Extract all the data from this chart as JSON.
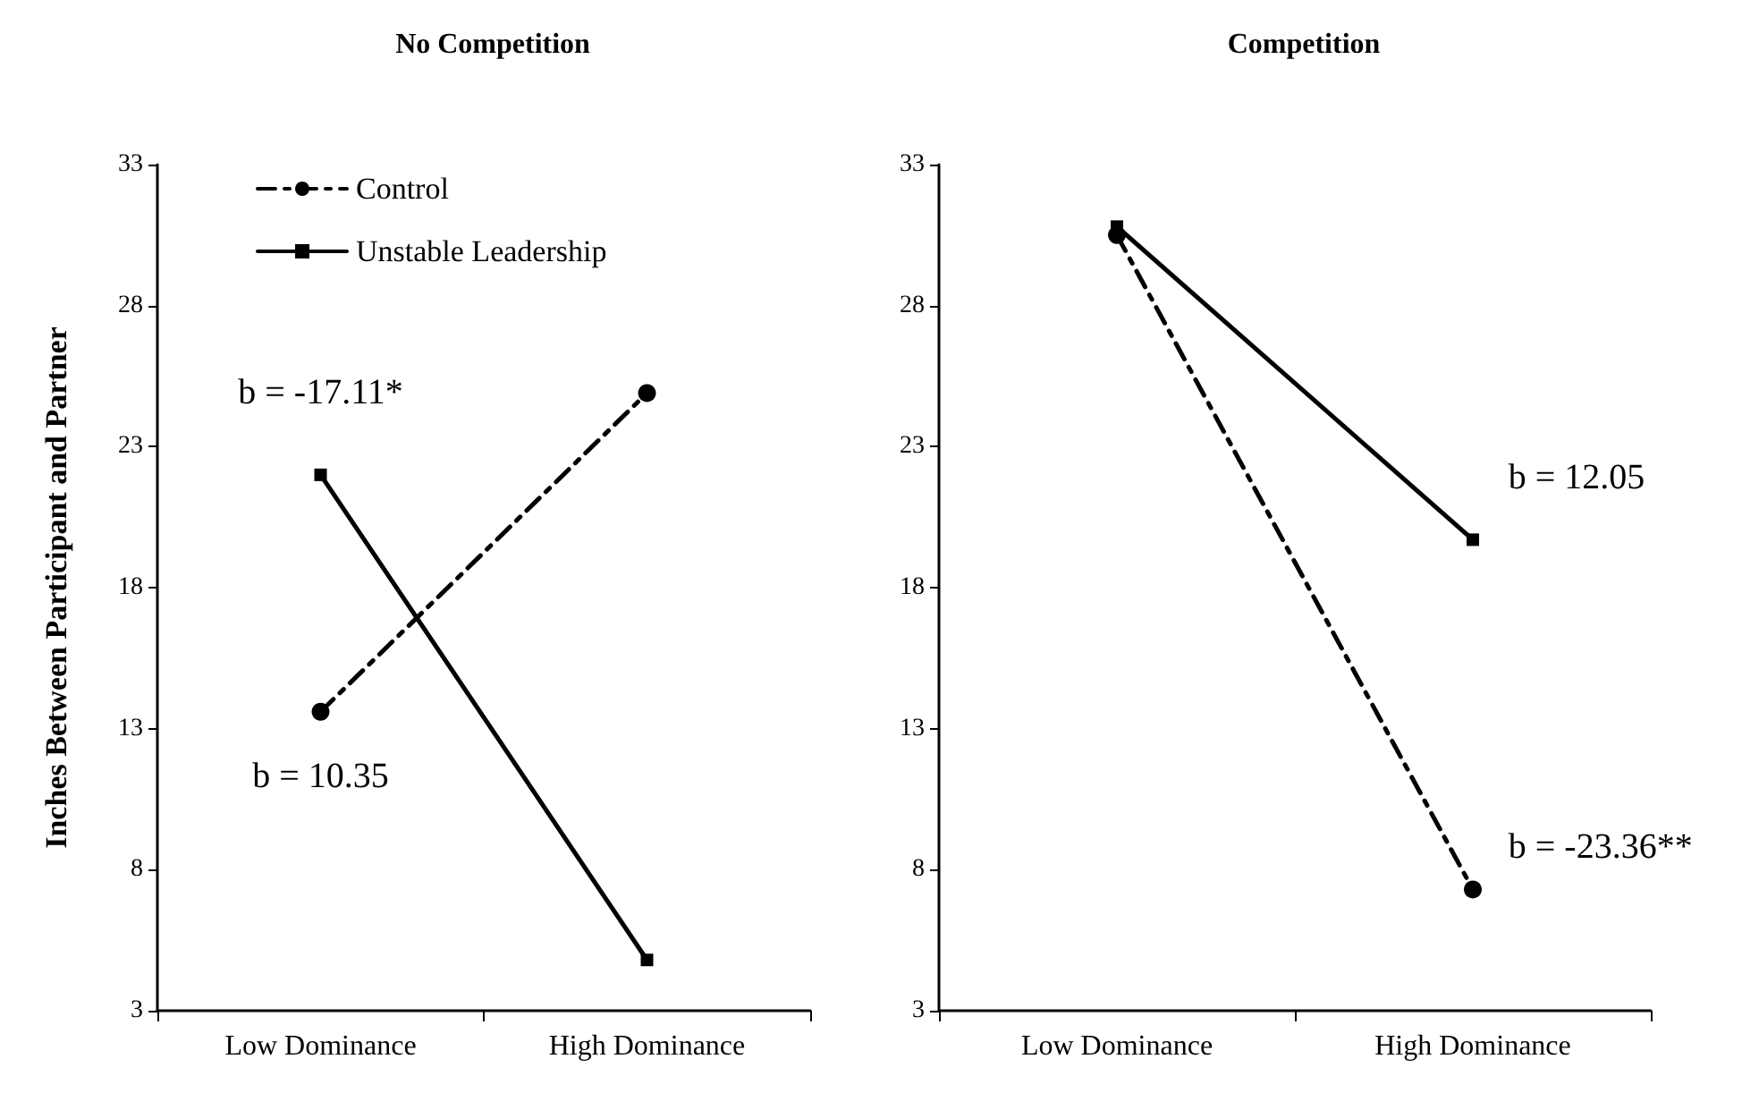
{
  "chart_data": [
    {
      "type": "line",
      "title": "No Competition",
      "ylabel": "Inches Between Participant and Partner",
      "categories": [
        "Low Dominance",
        "High Dominance"
      ],
      "series": [
        {
          "name": "Control",
          "color": "#000000",
          "values": [
            13.6,
            24.9
          ],
          "line_style": "dashed",
          "marker": "circle"
        },
        {
          "name": "Unstable Leadership",
          "color": "#000000",
          "values": [
            22.0,
            4.8
          ],
          "line_style": "solid",
          "marker": "square"
        }
      ],
      "ylim": [
        3,
        33
      ],
      "yticks": [
        3,
        8,
        13,
        18,
        23,
        28,
        33
      ],
      "grid": false,
      "legend": "top",
      "annotations": [
        "b = -17.11*",
        "b = 10.35"
      ]
    },
    {
      "type": "line",
      "title": "Competition",
      "categories": [
        "Low Dominance",
        "High Dominance"
      ],
      "series": [
        {
          "color": "#000000",
          "values": [
            30.5,
            7.3
          ],
          "line_style": "dashed",
          "marker": "circle"
        },
        {
          "color": "#000000",
          "values": [
            30.8,
            19.7
          ],
          "line_style": "solid",
          "marker": "square"
        }
      ],
      "ylim": [
        3,
        33
      ],
      "yticks": [
        3,
        8,
        13,
        18,
        23,
        28,
        33
      ],
      "grid": false,
      "legend": false,
      "annotations": [
        "b = 12.05",
        "b = -23.36**"
      ]
    }
  ]
}
